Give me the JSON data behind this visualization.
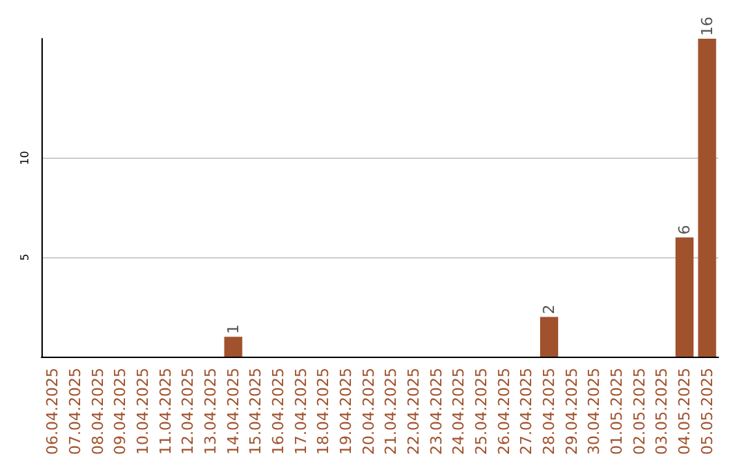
{
  "chart_data": {
    "type": "bar",
    "categories": [
      "06.04.2025",
      "07.04.2025",
      "08.04.2025",
      "09.04.2025",
      "10.04.2025",
      "11.04.2025",
      "12.04.2025",
      "13.04.2025",
      "14.04.2025",
      "15.04.2025",
      "16.04.2025",
      "17.04.2025",
      "18.04.2025",
      "19.04.2025",
      "20.04.2025",
      "21.04.2025",
      "22.04.2025",
      "23.04.2025",
      "24.04.2025",
      "25.04.2025",
      "26.04.2025",
      "27.04.2025",
      "28.04.2025",
      "29.04.2025",
      "30.04.2025",
      "01.05.2025",
      "02.05.2025",
      "03.05.2025",
      "04.05.2025",
      "05.05.2025"
    ],
    "values": [
      0,
      0,
      0,
      0,
      0,
      0,
      0,
      0,
      1,
      0,
      0,
      0,
      0,
      0,
      0,
      0,
      0,
      0,
      0,
      0,
      0,
      0,
      2,
      0,
      0,
      0,
      0,
      0,
      6,
      16
    ],
    "value_labels": [
      null,
      null,
      null,
      null,
      null,
      null,
      null,
      null,
      "1",
      null,
      null,
      null,
      null,
      null,
      null,
      null,
      null,
      null,
      null,
      null,
      null,
      null,
      "2",
      null,
      null,
      null,
      null,
      null,
      "6",
      "16"
    ],
    "color": "#a0522d",
    "ylim": [
      0,
      16
    ],
    "yticks": [
      5,
      10
    ],
    "grid": "y"
  }
}
